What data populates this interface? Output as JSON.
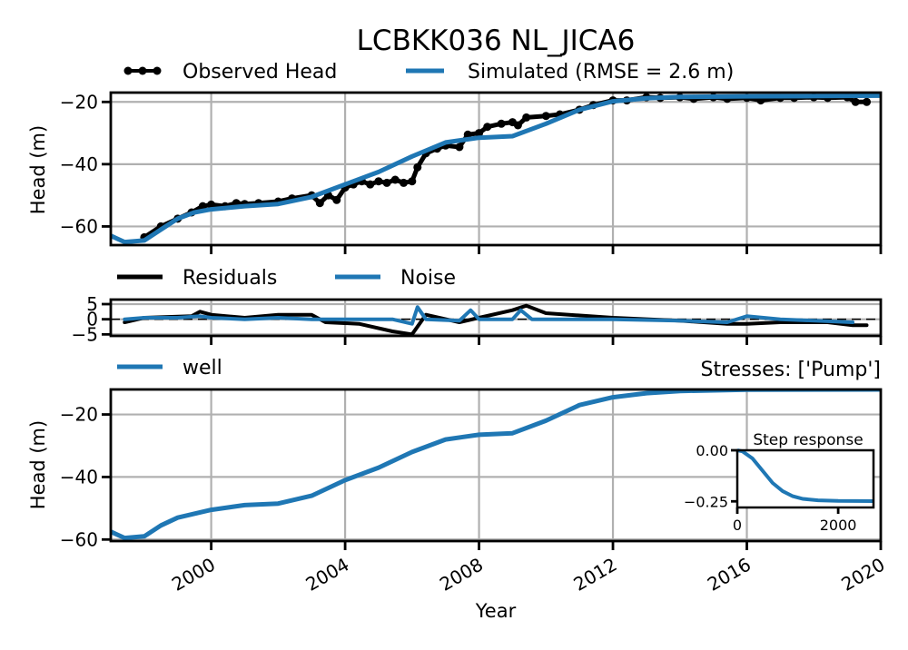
{
  "chart_data": {
    "type": "line",
    "title": "LCBKK036 NL_JICA6",
    "xlabel": "Year",
    "x_range": [
      "1997-01-01",
      "2020-01-01"
    ],
    "x_ticks": [
      "2000",
      "2004",
      "2008",
      "2012",
      "2016",
      "2020"
    ],
    "colors": {
      "observed": "#000000",
      "simulated": "#1f77b4",
      "residuals": "#000000",
      "noise": "#1f77b4",
      "well": "#1f77b4"
    },
    "panels": [
      {
        "name": "head",
        "ylabel": "Head (m)",
        "ylim": [
          -66,
          -17
        ],
        "y_ticks": [
          -20,
          -40,
          -60
        ],
        "grid": true,
        "legend": {
          "placement": "above",
          "entries": [
            "Observed Head",
            "Simulated (RMSE = 2.6 m)"
          ]
        },
        "series": [
          {
            "name": "Observed Head",
            "marker": "dot",
            "points": [
              [
                "1998-01-01",
                -63.5
              ],
              [
                "1998-07-01",
                -60.0
              ],
              [
                "1999-01-01",
                -57.5
              ],
              [
                "1999-06-01",
                -55.5
              ],
              [
                "1999-10-01",
                -53.5
              ],
              [
                "2000-01-01",
                -53.0
              ],
              [
                "2000-06-01",
                -53.5
              ],
              [
                "2000-10-01",
                -52.5
              ],
              [
                "2001-01-01",
                -52.8
              ],
              [
                "2001-06-01",
                -52.5
              ],
              [
                "2002-01-01",
                -52.0
              ],
              [
                "2002-06-01",
                -51.0
              ],
              [
                "2003-01-01",
                -50.0
              ],
              [
                "2003-04-01",
                -52.5
              ],
              [
                "2003-07-01",
                -50.0
              ],
              [
                "2003-10-01",
                -51.5
              ],
              [
                "2004-01-01",
                -47.5
              ],
              [
                "2004-04-01",
                -46.5
              ],
              [
                "2004-07-01",
                -45.5
              ],
              [
                "2004-10-01",
                -46.5
              ],
              [
                "2005-01-01",
                -45.5
              ],
              [
                "2005-04-01",
                -46.0
              ],
              [
                "2005-07-01",
                -45.0
              ],
              [
                "2005-10-01",
                -46.0
              ],
              [
                "2006-01-01",
                -45.5
              ],
              [
                "2006-03-01",
                -41.0
              ],
              [
                "2006-06-01",
                -36.5
              ],
              [
                "2006-10-01",
                -35.0
              ],
              [
                "2007-01-01",
                -34.0
              ],
              [
                "2007-06-01",
                -34.5
              ],
              [
                "2007-09-01",
                -30.5
              ],
              [
                "2008-01-01",
                -30.0
              ],
              [
                "2008-04-01",
                -28.0
              ],
              [
                "2008-09-01",
                -27.0
              ],
              [
                "2009-01-01",
                -26.5
              ],
              [
                "2009-03-01",
                -27.5
              ],
              [
                "2009-06-01",
                -25.0
              ],
              [
                "2010-01-01",
                -24.5
              ],
              [
                "2010-06-01",
                -24.0
              ],
              [
                "2011-01-01",
                -22.5
              ],
              [
                "2011-06-01",
                -21.0
              ],
              [
                "2012-01-01",
                -19.5
              ],
              [
                "2012-06-01",
                -19.5
              ],
              [
                "2013-01-01",
                -18.5
              ],
              [
                "2013-06-01",
                -18.7
              ],
              [
                "2014-01-01",
                -18.5
              ],
              [
                "2014-06-01",
                -19.0
              ],
              [
                "2015-01-01",
                -18.5
              ],
              [
                "2015-06-01",
                -19.0
              ],
              [
                "2016-01-01",
                -18.7
              ],
              [
                "2016-06-01",
                -19.5
              ],
              [
                "2017-01-01",
                -18.7
              ],
              [
                "2017-06-01",
                -18.7
              ],
              [
                "2018-01-01",
                -18.5
              ],
              [
                "2018-06-01",
                -18.7
              ],
              [
                "2019-01-01",
                -18.5
              ],
              [
                "2019-04-01",
                -20.0
              ],
              [
                "2019-08-01",
                -20.0
              ]
            ]
          },
          {
            "name": "Simulated (RMSE = 2.6 m)",
            "points": [
              [
                "1997-01-01",
                -63.0
              ],
              [
                "1997-06-01",
                -65.0
              ],
              [
                "1998-01-01",
                -64.5
              ],
              [
                "1998-07-01",
                -61.0
              ],
              [
                "1999-01-01",
                -57.5
              ],
              [
                "1999-07-01",
                -55.5
              ],
              [
                "2000-01-01",
                -54.5
              ],
              [
                "2001-01-01",
                -53.5
              ],
              [
                "2002-01-01",
                -52.8
              ],
              [
                "2003-01-01",
                -50.5
              ],
              [
                "2004-01-01",
                -46.5
              ],
              [
                "2005-01-01",
                -42.5
              ],
              [
                "2006-01-01",
                -37.5
              ],
              [
                "2007-01-01",
                -33.0
              ],
              [
                "2008-01-01",
                -31.5
              ],
              [
                "2009-01-01",
                -31.0
              ],
              [
                "2010-01-01",
                -27.0
              ],
              [
                "2011-01-01",
                -22.5
              ],
              [
                "2012-01-01",
                -19.8
              ],
              [
                "2013-01-01",
                -18.8
              ],
              [
                "2014-01-01",
                -18.4
              ],
              [
                "2016-01-01",
                -18.2
              ],
              [
                "2018-01-01",
                -18.1
              ],
              [
                "2020-01-01",
                -18.0
              ]
            ]
          }
        ]
      },
      {
        "name": "residuals",
        "ylim": [
          -5.5,
          6.5
        ],
        "y_ticks": [
          5,
          0,
          -5
        ],
        "grid": true,
        "zero_line": "dashed",
        "legend": {
          "placement": "above",
          "entries": [
            "Residuals",
            "Noise"
          ]
        },
        "series": [
          {
            "name": "Residuals",
            "points": [
              [
                "1997-06-01",
                -1.0
              ],
              [
                "1998-01-01",
                0.5
              ],
              [
                "1999-06-01",
                1.0
              ],
              [
                "1999-09-01",
                2.5
              ],
              [
                "2000-01-01",
                1.5
              ],
              [
                "2001-01-01",
                0.5
              ],
              [
                "2002-01-01",
                1.5
              ],
              [
                "2003-01-01",
                1.5
              ],
              [
                "2003-06-01",
                -1.0
              ],
              [
                "2004-06-01",
                -1.5
              ],
              [
                "2005-06-01",
                -4.0
              ],
              [
                "2006-01-01",
                -5.0
              ],
              [
                "2006-06-01",
                1.5
              ],
              [
                "2007-06-01",
                -1.0
              ],
              [
                "2008-01-01",
                0.5
              ],
              [
                "2009-01-01",
                3.0
              ],
              [
                "2009-06-01",
                4.5
              ],
              [
                "2010-01-01",
                2.0
              ],
              [
                "2012-01-01",
                0.5
              ],
              [
                "2014-01-01",
                -0.5
              ],
              [
                "2015-06-01",
                -1.5
              ],
              [
                "2016-01-01",
                -1.5
              ],
              [
                "2017-01-01",
                -1.0
              ],
              [
                "2018-06-01",
                -1.0
              ],
              [
                "2019-03-01",
                -2.0
              ],
              [
                "2019-08-01",
                -2.0
              ]
            ]
          },
          {
            "name": "Noise",
            "points": [
              [
                "1997-06-01",
                0.0
              ],
              [
                "1998-01-01",
                0.5
              ],
              [
                "1999-01-01",
                0.5
              ],
              [
                "1999-09-01",
                1.0
              ],
              [
                "2000-01-01",
                0.5
              ],
              [
                "2001-01-01",
                0.0
              ],
              [
                "2002-01-01",
                0.5
              ],
              [
                "2003-01-01",
                0.0
              ],
              [
                "2004-01-01",
                0.0
              ],
              [
                "2005-06-01",
                0.0
              ],
              [
                "2006-01-01",
                -1.5
              ],
              [
                "2006-03-01",
                4.0
              ],
              [
                "2006-06-01",
                0.0
              ],
              [
                "2007-06-01",
                -0.5
              ],
              [
                "2007-10-01",
                3.0
              ],
              [
                "2008-01-01",
                0.0
              ],
              [
                "2009-01-01",
                0.0
              ],
              [
                "2009-04-01",
                3.0
              ],
              [
                "2009-08-01",
                0.0
              ],
              [
                "2012-01-01",
                0.0
              ],
              [
                "2014-01-01",
                -0.5
              ],
              [
                "2015-06-01",
                -1.0
              ],
              [
                "2016-01-01",
                1.0
              ],
              [
                "2017-01-01",
                0.0
              ],
              [
                "2019-03-01",
                -1.0
              ]
            ]
          }
        ]
      },
      {
        "name": "stress",
        "ylabel": "Head (m)",
        "ylim": [
          -60.5,
          -12
        ],
        "y_ticks": [
          -20,
          -40,
          -60
        ],
        "grid": true,
        "legend": {
          "placement": "above",
          "entries": [
            "well"
          ]
        },
        "annotation": "Stresses: ['Pump']",
        "series": [
          {
            "name": "well",
            "points": [
              [
                "1997-01-01",
                -57.5
              ],
              [
                "1997-06-01",
                -59.5
              ],
              [
                "1998-01-01",
                -59.0
              ],
              [
                "1998-07-01",
                -55.5
              ],
              [
                "1999-01-01",
                -53.0
              ],
              [
                "2000-01-01",
                -50.5
              ],
              [
                "2001-01-01",
                -49.0
              ],
              [
                "2002-01-01",
                -48.5
              ],
              [
                "2003-01-01",
                -46.0
              ],
              [
                "2004-01-01",
                -41.0
              ],
              [
                "2005-01-01",
                -37.0
              ],
              [
                "2006-01-01",
                -32.0
              ],
              [
                "2007-01-01",
                -28.0
              ],
              [
                "2008-01-01",
                -26.5
              ],
              [
                "2009-01-01",
                -26.0
              ],
              [
                "2010-01-01",
                -22.0
              ],
              [
                "2011-01-01",
                -17.0
              ],
              [
                "2012-01-01",
                -14.5
              ],
              [
                "2013-01-01",
                -13.2
              ],
              [
                "2014-01-01",
                -12.5
              ],
              [
                "2016-01-01",
                -12.1
              ],
              [
                "2020-01-01",
                -12.0
              ]
            ]
          }
        ],
        "inset": {
          "title": "Step response",
          "x_ticks": [
            0,
            2000
          ],
          "y_ticks": [
            "0.00",
            "−0.25"
          ],
          "xlim": [
            0,
            2700
          ],
          "ylim": [
            -0.28,
            0.0
          ],
          "points": [
            [
              0,
              0.0
            ],
            [
              100,
              -0.005
            ],
            [
              300,
              -0.04
            ],
            [
              500,
              -0.1
            ],
            [
              700,
              -0.16
            ],
            [
              900,
              -0.2
            ],
            [
              1100,
              -0.225
            ],
            [
              1300,
              -0.238
            ],
            [
              1600,
              -0.245
            ],
            [
              2000,
              -0.248
            ],
            [
              2700,
              -0.249
            ]
          ]
        }
      }
    ]
  }
}
